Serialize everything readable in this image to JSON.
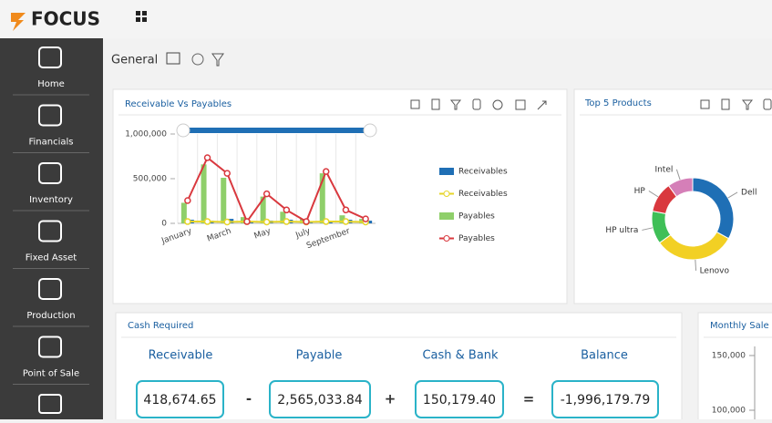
{
  "header": {
    "logo": "FOCUS"
  },
  "sidebar": [
    "Home",
    "Financials",
    "Inventory",
    "Fixed Asset",
    "Production",
    "Point of Sale"
  ],
  "breadcrumb": "General",
  "chart_data": [
    {
      "type": "combo",
      "title": "Receivable Vs Payables",
      "categories": [
        "January",
        null,
        "March",
        null,
        "May",
        null,
        "July",
        null,
        "September",
        null
      ],
      "ylim": [
        0,
        1000000
      ],
      "yticks": [
        0,
        {
          "value": 500000,
          "label": "500,000"
        },
        {
          "value": 1000000,
          "label": "1,000,000"
        }
      ],
      "grid": true,
      "series": [
        {
          "name": "Receivables",
          "kind": "bar",
          "color": "#1f6fb5",
          "values": [
            40000,
            30000,
            50000,
            20000,
            30000,
            40000,
            20000,
            30000,
            40000,
            30000
          ]
        },
        {
          "name": "Receivables",
          "kind": "line",
          "color": "#e6d52a",
          "values": [
            20000,
            20000,
            15000,
            20000,
            15000,
            20000,
            15000,
            20000,
            20000,
            15000
          ]
        },
        {
          "name": "Payables",
          "kind": "bar",
          "color": "#8fcf6a",
          "values": [
            230000,
            660000,
            510000,
            70000,
            300000,
            130000,
            50000,
            560000,
            90000,
            50000
          ]
        },
        {
          "name": "Payables",
          "kind": "line",
          "color": "#d9383e",
          "values": [
            255000,
            735000,
            560000,
            20000,
            330000,
            150000,
            20000,
            580000,
            150000,
            50000
          ]
        }
      ]
    },
    {
      "type": "pie",
      "title": "Top 5 Products",
      "donut": true,
      "categories": [
        "Dell",
        "Lenovo",
        "HP ultra",
        "HP",
        "Intel"
      ],
      "values": [
        33,
        32,
        13,
        12,
        10
      ],
      "colors": [
        "#1f6fb5",
        "#f2d024",
        "#3fbf57",
        "#d9383e",
        "#d57fb8"
      ]
    },
    {
      "type": "line",
      "title": "Monthly Sale",
      "yticks": [
        {
          "value": 150000,
          "label": "150,000"
        },
        {
          "value": 100000,
          "label": "100,000"
        }
      ]
    }
  ],
  "cash_required": {
    "title": "Cash Required",
    "items": [
      {
        "label": "Receivable",
        "value": "418,674.65"
      },
      {
        "label": "Payable",
        "value": "2,565,033.84"
      },
      {
        "label": "Cash & Bank",
        "value": "150,179.40"
      },
      {
        "label": "Balance",
        "value": "-1,996,179.79"
      }
    ],
    "operators": [
      "-",
      "+",
      "="
    ]
  }
}
